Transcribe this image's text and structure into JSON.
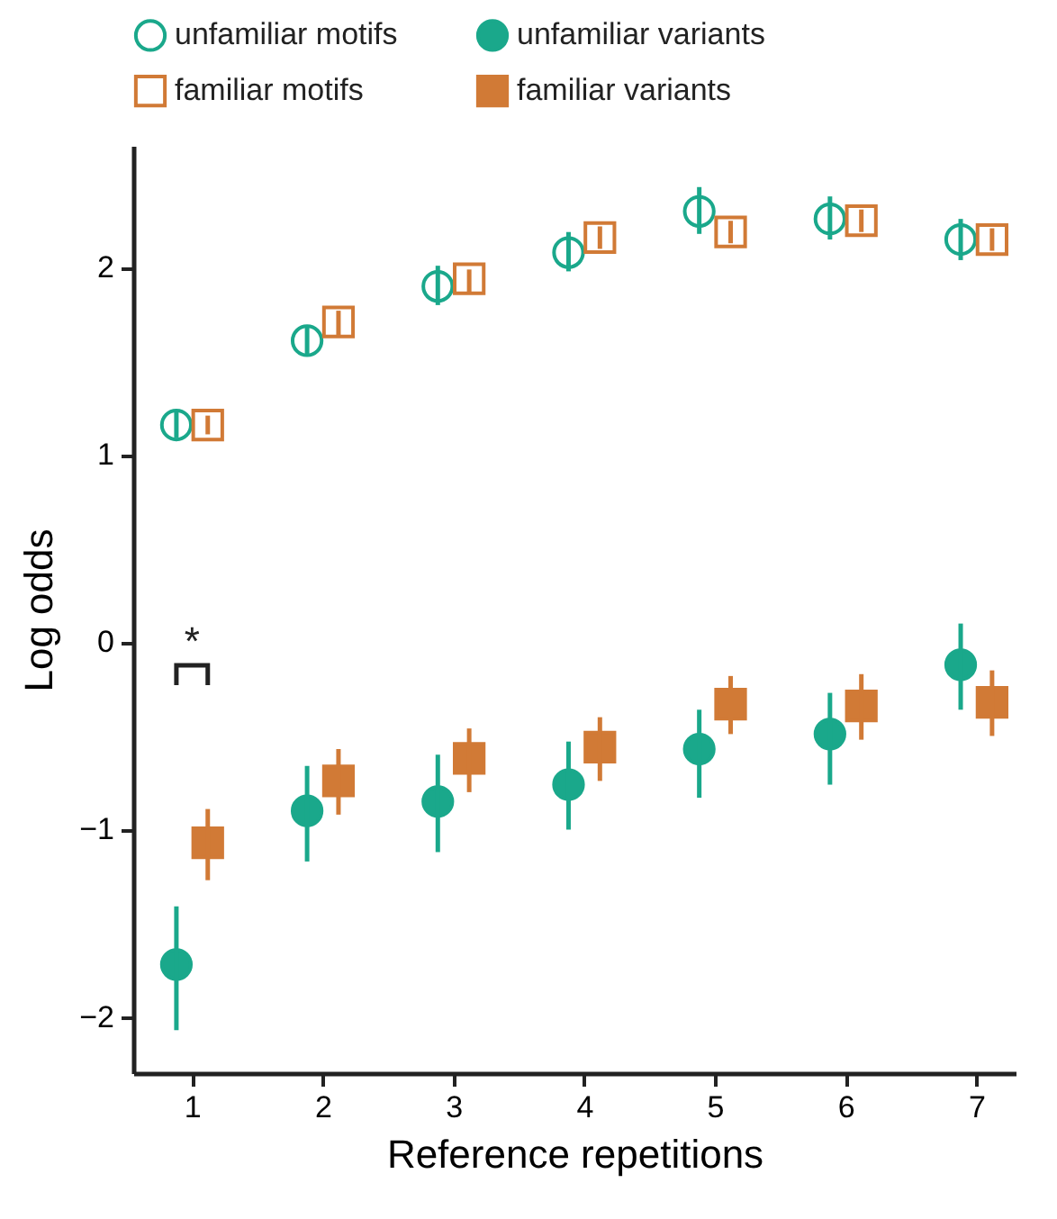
{
  "chart_data": {
    "type": "scatter",
    "xlabel": "Reference repetitions",
    "ylabel": "Log odds",
    "xlim": [
      0.55,
      7.3
    ],
    "xticks": [
      1,
      2,
      3,
      4,
      5,
      6,
      7
    ],
    "ylim": [
      -2.3,
      2.65
    ],
    "yticks": [
      -2,
      -1,
      0,
      1,
      2
    ],
    "grid": false,
    "legend": "top",
    "annotations": [
      "*"
    ],
    "series": [
      {
        "name": "unfamiliar motifs",
        "color": "#1aa88b",
        "marker": "circle",
        "x": [
          0.88,
          1.88,
          2.88,
          3.88,
          4.88,
          5.88,
          6.88
        ],
        "values": [
          1.16,
          1.61,
          1.9,
          2.08,
          2.3,
          2.26,
          2.15
        ],
        "errors": [
          [
            1.09,
            1.23
          ],
          [
            1.53,
            1.68
          ],
          [
            1.8,
            2.01
          ],
          [
            1.98,
            2.19
          ],
          [
            2.18,
            2.43
          ],
          [
            2.15,
            2.38
          ],
          [
            2.04,
            2.26
          ]
        ]
      },
      {
        "name": "unfamiliar variants",
        "color": "#1aa88b",
        "marker": "circle",
        "x": [
          0.88,
          1.88,
          2.88,
          3.88,
          4.88,
          5.88,
          6.88
        ],
        "values": [
          -1.72,
          -0.9,
          -0.85,
          -0.76,
          -0.57,
          -0.49,
          -0.12
        ],
        "errors": [
          [
            -2.07,
            -1.41
          ],
          [
            -1.17,
            -0.66
          ],
          [
            -1.12,
            -0.6
          ],
          [
            -1.0,
            -0.53
          ],
          [
            -0.83,
            -0.36
          ],
          [
            -0.76,
            -0.27
          ],
          [
            -0.36,
            0.1
          ]
        ]
      },
      {
        "name": "familiar motifs",
        "color": "#d17a36",
        "marker": "square",
        "x": [
          1.12,
          2.12,
          3.12,
          4.12,
          5.12,
          6.12,
          7.12
        ],
        "values": [
          1.16,
          1.71,
          1.94,
          2.16,
          2.19,
          2.25,
          2.15
        ],
        "errors": [
          [
            1.11,
            1.21
          ],
          [
            1.63,
            1.77
          ],
          [
            1.87,
            1.99
          ],
          [
            2.1,
            2.22
          ],
          [
            2.13,
            2.25
          ],
          [
            2.19,
            2.31
          ],
          [
            2.09,
            2.21
          ]
        ]
      },
      {
        "name": "familiar variants",
        "color": "#d17a36",
        "marker": "square",
        "x": [
          1.12,
          2.12,
          3.12,
          4.12,
          5.12,
          6.12,
          7.12
        ],
        "values": [
          -1.07,
          -0.74,
          -0.62,
          -0.56,
          -0.33,
          -0.34,
          -0.32
        ],
        "errors": [
          [
            -1.27,
            -0.89
          ],
          [
            -0.92,
            -0.57
          ],
          [
            -0.8,
            -0.46
          ],
          [
            -0.74,
            -0.4
          ],
          [
            -0.49,
            -0.18
          ],
          [
            -0.52,
            -0.17
          ],
          [
            -0.5,
            -0.15
          ]
        ]
      }
    ]
  }
}
